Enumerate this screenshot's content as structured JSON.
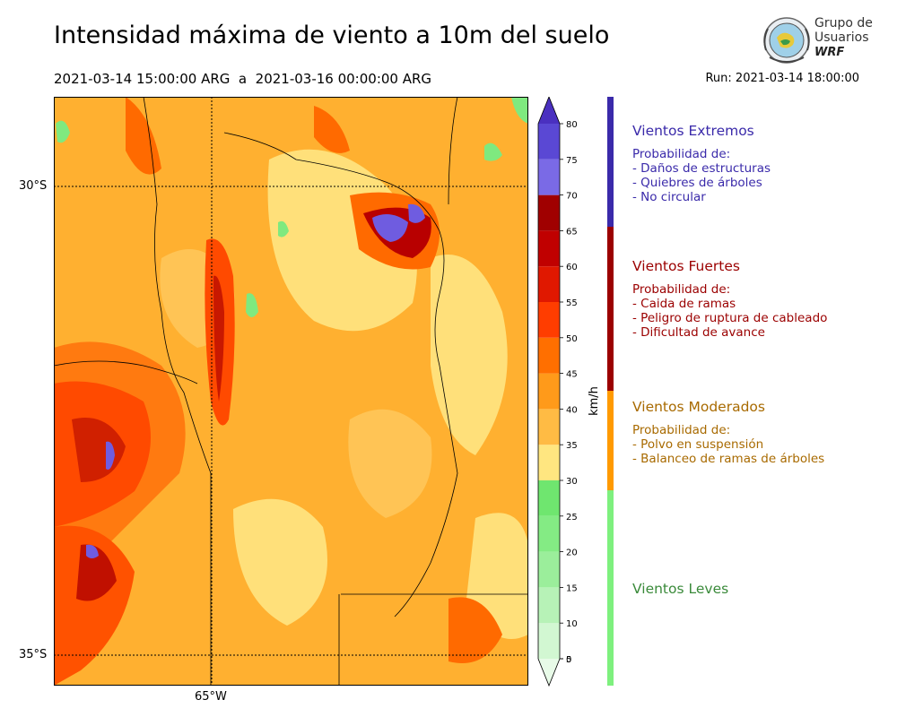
{
  "title": "Intensidad máxima de viento a 10m del suelo",
  "period": "2021-03-14 15:00:00 ARG  a  2021-03-16 00:00:00 ARG",
  "run": "Run: 2021-03-14 18:00:00",
  "logo": {
    "line1": "Grupo de",
    "line2": "Usuarios",
    "line3": "WRF"
  },
  "map": {
    "lat_labels": [
      "30°S",
      "35°S"
    ],
    "lon_labels": [
      "65°W"
    ]
  },
  "colorbar": {
    "unit": "km/h",
    "ticks": [
      "0",
      "5",
      "10",
      "15",
      "20",
      "25",
      "30",
      "35",
      "40",
      "45",
      "50",
      "55",
      "60",
      "65",
      "70",
      "75",
      "80"
    ],
    "colors": [
      "#e8fbe8",
      "#d2f7d2",
      "#b7f2b7",
      "#9bee9b",
      "#84eb84",
      "#6fe66f",
      "#ffe680",
      "#ffbb44",
      "#ff9a1a",
      "#ff6f00",
      "#ff3d00",
      "#e01800",
      "#c00000",
      "#a00000",
      "#7a6ae6",
      "#5a48d4",
      "#4a30c0"
    ]
  },
  "categories": [
    {
      "title": "Vientos Extremos",
      "color": "#3a2aaa",
      "items": [
        "Probabilidad de:",
        "- Daños de estructuras",
        "- Quiebres de árboles",
        "- No circular"
      ]
    },
    {
      "title": "Vientos Fuertes",
      "color": "#9b0000",
      "items": [
        "Probabilidad de:",
        "- Caida de ramas",
        "- Peligro de ruptura de cableado",
        "- Dificultad de avance"
      ]
    },
    {
      "title": "Vientos Moderados",
      "color": "#a86a00",
      "items": [
        "Probabilidad de:",
        "- Polvo en suspensión",
        "- Balanceo de ramas de árboles"
      ]
    },
    {
      "title": "Vientos Leves",
      "color": "#3a8a3a",
      "items": []
    }
  ]
}
